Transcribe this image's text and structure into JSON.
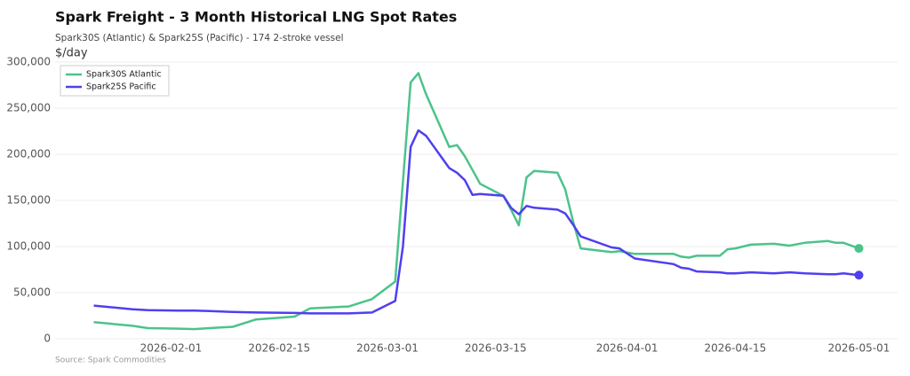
{
  "chart_data": {
    "type": "line",
    "title": "Spark Freight - 3 Month Historical LNG Spot Rates",
    "subtitle": "Spark30S (Atlantic) & Spark25S (Pacific) - 174 2-stroke vessel",
    "y_label": "$/day",
    "source": "Source: Spark Commodities",
    "x": [
      "2026-01-22",
      "2026-01-27",
      "2026-01-29",
      "2026-02-02",
      "2026-02-04",
      "2026-02-06",
      "2026-02-09",
      "2026-02-12",
      "2026-02-17",
      "2026-02-19",
      "2026-02-24",
      "2026-02-27",
      "2026-03-02",
      "2026-03-03",
      "2026-03-04",
      "2026-03-05",
      "2026-03-06",
      "2026-03-09",
      "2026-03-10",
      "2026-03-11",
      "2026-03-12",
      "2026-03-13",
      "2026-03-16",
      "2026-03-17",
      "2026-03-18",
      "2026-03-19",
      "2026-03-20",
      "2026-03-23",
      "2026-03-24",
      "2026-03-25",
      "2026-03-26",
      "2026-03-30",
      "2026-03-31",
      "2026-04-02",
      "2026-04-07",
      "2026-04-08",
      "2026-04-09",
      "2026-04-10",
      "2026-04-13",
      "2026-04-14",
      "2026-04-15",
      "2026-04-17",
      "2026-04-20",
      "2026-04-22",
      "2026-04-24",
      "2026-04-27",
      "2026-04-28",
      "2026-04-29",
      "2026-05-01"
    ],
    "series": [
      {
        "name": "Spark30S Atlantic",
        "color": "#4cc38a",
        "values": [
          18000,
          14000,
          11500,
          11000,
          10500,
          11500,
          13000,
          21000,
          24000,
          33000,
          35000,
          43000,
          62000,
          170000,
          278000,
          288000,
          265000,
          208000,
          210000,
          198000,
          183000,
          168000,
          155000,
          140000,
          123000,
          175000,
          182000,
          180000,
          162000,
          128000,
          98000,
          94000,
          95000,
          92000,
          92000,
          89000,
          88000,
          90000,
          90000,
          97000,
          98000,
          102000,
          103000,
          101000,
          104000,
          106000,
          104000,
          104000,
          98000
        ]
      },
      {
        "name": "Spark25S Pacific",
        "color": "#4f3ff0",
        "values": [
          36000,
          32000,
          31000,
          30500,
          30500,
          30000,
          29000,
          28500,
          28000,
          27500,
          27500,
          28500,
          41000,
          100000,
          208000,
          226000,
          220000,
          185000,
          180000,
          172000,
          156000,
          157000,
          155000,
          142000,
          135000,
          144000,
          142000,
          140000,
          136000,
          124000,
          111000,
          99000,
          98000,
          87000,
          81000,
          77000,
          76000,
          73000,
          72000,
          71000,
          71000,
          72000,
          71000,
          72000,
          71000,
          70000,
          70000,
          71000,
          69000
        ]
      }
    ],
    "xlim": [
      "2026-01-17",
      "2026-05-06"
    ],
    "xticks": [
      "2026-02-01",
      "2026-02-15",
      "2026-03-01",
      "2026-03-15",
      "2026-04-01",
      "2026-04-15",
      "2026-05-01"
    ],
    "ylim": [
      0,
      300000
    ],
    "yticks": [
      0,
      {
        "value": 50000,
        "label": "50,000"
      },
      {
        "value": 100000,
        "label": "100,000"
      },
      {
        "value": 150000,
        "label": "150,000"
      },
      {
        "value": 200000,
        "label": "200,000"
      },
      {
        "value": 250000,
        "label": "250,000"
      },
      {
        "value": 300000,
        "label": "300,000"
      }
    ],
    "grid": true,
    "legend": "top-left"
  }
}
